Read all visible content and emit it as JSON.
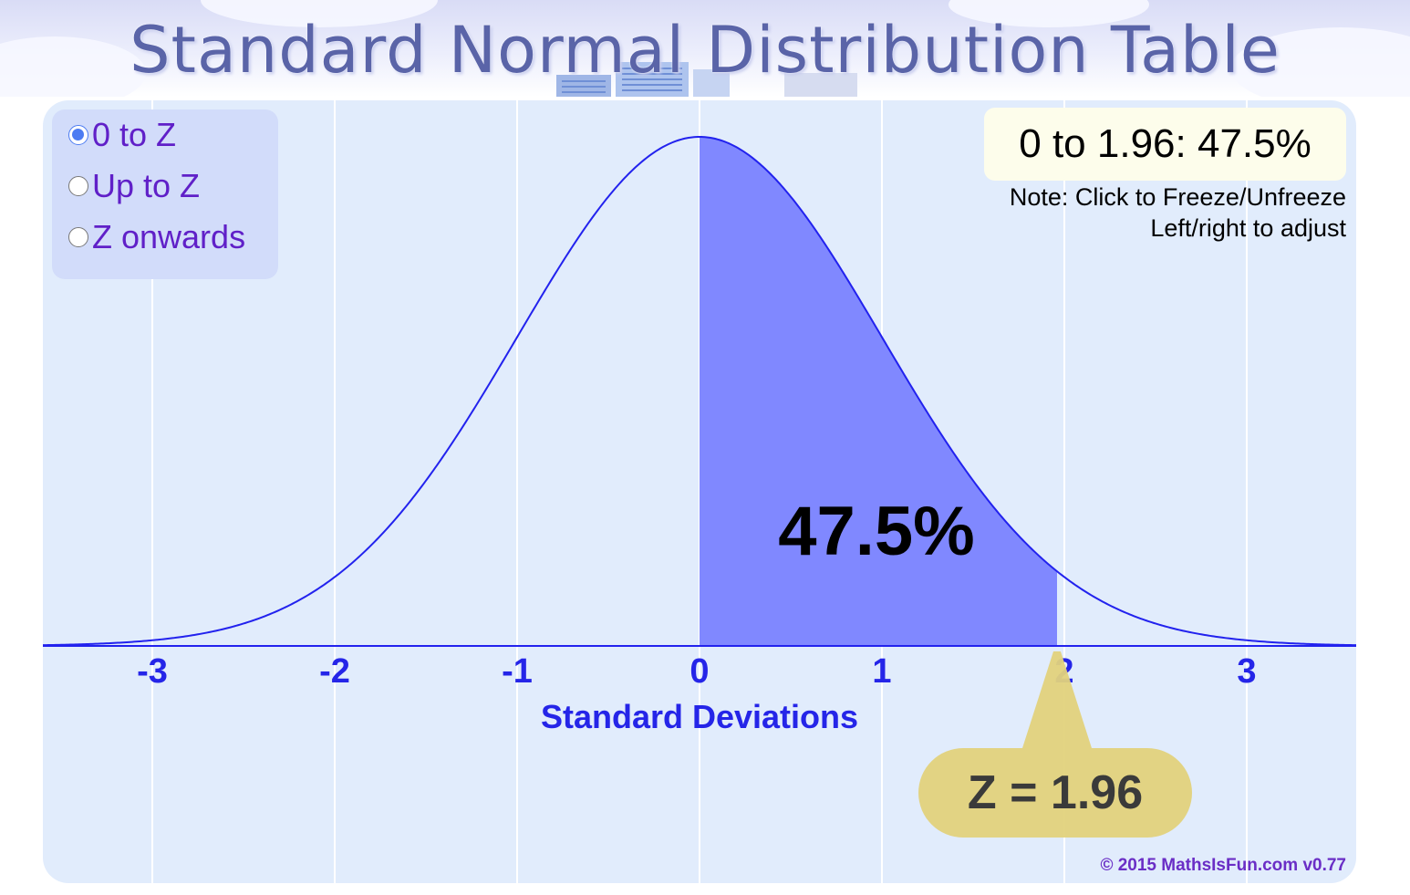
{
  "page": {
    "title": "Standard Normal Distribution Table"
  },
  "options": [
    {
      "label": "0 to Z",
      "checked": true
    },
    {
      "label": "Up to Z",
      "checked": false
    },
    {
      "label": "Z onwards",
      "checked": false
    }
  ],
  "readout": "0 to 1.96: 47.5%",
  "note": {
    "line1": "Note: Click to Freeze/Unfreeze",
    "line2": "Left/right to adjust"
  },
  "copyright": "© 2015 MathsIsFun.com v0.77",
  "colors": {
    "curve": "#2222ee",
    "area": "#8088ff",
    "axis_label": "#2525e8",
    "z_bubble": "#e2d27c",
    "z_text": "#3a3a3a"
  },
  "chart_data": {
    "type": "area",
    "distribution": "standard-normal",
    "mean": 0,
    "sd": 1,
    "xlabel": "Standard Deviations",
    "xlim": [
      -3.6,
      3.6
    ],
    "ticks": [
      -3,
      -2,
      -1,
      0,
      1,
      2,
      3
    ],
    "tick_labels": [
      "-3",
      "-2",
      "-1",
      "0",
      "1",
      "2",
      "3"
    ],
    "shaded_from": 0,
    "shaded_to": 1.96,
    "area_label": "47.5%",
    "z_label": "Z = 1.96",
    "z_value": 1.96,
    "grid": true
  }
}
